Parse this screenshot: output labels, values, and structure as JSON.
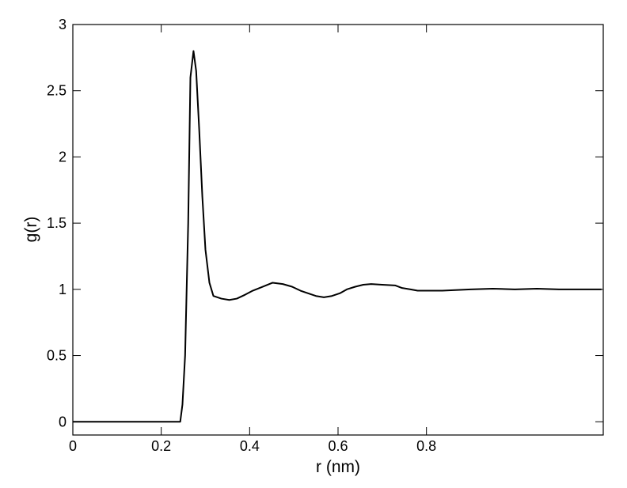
{
  "chart_data": {
    "type": "line",
    "xlabel": "r (nm)",
    "ylabel": "g(r)",
    "x": [
      0,
      0.05,
      0.1,
      0.15,
      0.2,
      0.243,
      0.248,
      0.254,
      0.261,
      0.266,
      0.273,
      0.279,
      0.286,
      0.293,
      0.3,
      0.309,
      0.318,
      0.336,
      0.354,
      0.371,
      0.39,
      0.407,
      0.43,
      0.452,
      0.475,
      0.496,
      0.515,
      0.532,
      0.55,
      0.568,
      0.586,
      0.604,
      0.62,
      0.639,
      0.657,
      0.675,
      0.7,
      0.729,
      0.745,
      0.764,
      0.78,
      0.8,
      0.836,
      0.9,
      0.95,
      1.0,
      1.05,
      1.1,
      1.15,
      1.196
    ],
    "values": [
      0,
      0,
      0,
      0,
      0,
      0,
      0.13,
      0.5,
      1.5,
      2.6,
      2.8,
      2.65,
      2.2,
      1.7,
      1.3,
      1.05,
      0.95,
      0.93,
      0.92,
      0.93,
      0.96,
      0.99,
      1.02,
      1.05,
      1.04,
      1.02,
      0.99,
      0.97,
      0.95,
      0.94,
      0.95,
      0.97,
      1.0,
      1.02,
      1.035,
      1.04,
      1.035,
      1.03,
      1.01,
      1.0,
      0.99,
      0.99,
      0.99,
      1.0,
      1.005,
      1.0,
      1.005,
      1.0,
      1.0,
      1.0
    ],
    "color": "#000000",
    "xlim": [
      0,
      1.2
    ],
    "xticks": [
      0,
      0.2,
      0.4,
      0.6,
      0.8
    ],
    "ylim": [
      -0.1,
      3
    ],
    "yticks": [
      0,
      0.5,
      1,
      1.5,
      2,
      2.5,
      3
    ]
  }
}
